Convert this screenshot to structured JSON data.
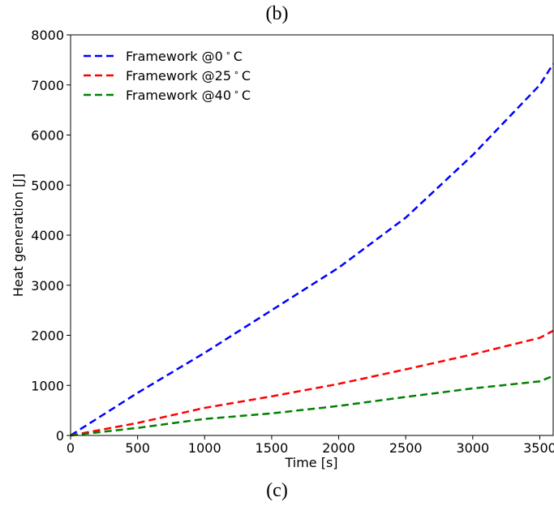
{
  "captions": {
    "top": "(b)",
    "bottom": "(c)"
  },
  "chart_data": {
    "type": "line",
    "title": "",
    "xlabel": "Time [s]",
    "ylabel": "Heat generation [J]",
    "xlim": [
      0,
      3600
    ],
    "ylim": [
      0,
      8000
    ],
    "xticks": [
      0,
      500,
      1000,
      1500,
      2000,
      2500,
      3000,
      3500
    ],
    "yticks": [
      0,
      1000,
      2000,
      3000,
      4000,
      5000,
      6000,
      7000,
      8000
    ],
    "grid": false,
    "legend_position": "top-left",
    "line_style": "dashed",
    "series": [
      {
        "name": "Framework @0$^\\circ$C",
        "label_prefix": "Framework @0",
        "label_suffix": "C",
        "color": "#0000ff",
        "x": [
          0,
          500,
          1000,
          1500,
          2000,
          2500,
          3000,
          3500,
          3600
        ],
        "y": [
          0,
          850,
          1650,
          2500,
          3350,
          4350,
          5600,
          7000,
          7420
        ]
      },
      {
        "name": "Framework @25$^\\circ$C",
        "label_prefix": "Framework @25",
        "label_suffix": "C",
        "color": "#ff0000",
        "x": [
          0,
          500,
          1000,
          1500,
          2000,
          2500,
          3000,
          3500,
          3600
        ],
        "y": [
          0,
          250,
          550,
          780,
          1030,
          1320,
          1620,
          1950,
          2090
        ]
      },
      {
        "name": "Framework @40$^\\circ$C",
        "label_prefix": "Framework @40",
        "label_suffix": "C",
        "color": "#008000",
        "x": [
          0,
          500,
          1000,
          1500,
          2000,
          2500,
          3000,
          3500,
          3600
        ],
        "y": [
          0,
          150,
          330,
          440,
          590,
          770,
          940,
          1080,
          1190
        ]
      }
    ]
  }
}
